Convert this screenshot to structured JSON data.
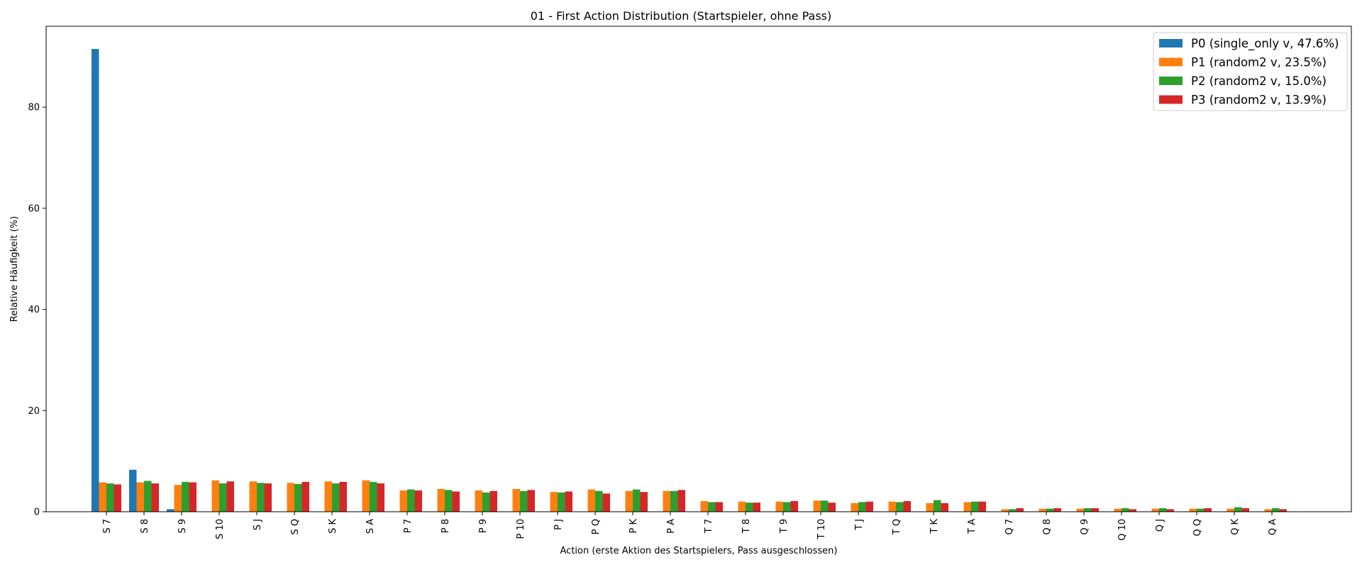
{
  "chart_data": {
    "type": "bar",
    "title": "01 - First Action Distribution (Startspieler, ohne Pass)",
    "xlabel": "Action (erste Aktion des Startspielers, Pass ausgeschlossen)",
    "ylabel": "Relative Häufigkeit (%)",
    "ylim": [
      0,
      96
    ],
    "yticks": [
      0,
      20,
      40,
      60,
      80
    ],
    "grid": false,
    "legend_position": "top-right",
    "categories": [
      "S 7",
      "S 8",
      "S 9",
      "S 10",
      "S J",
      "S Q",
      "S K",
      "S A",
      "P 7",
      "P 8",
      "P 9",
      "P 10",
      "P J",
      "P Q",
      "P K",
      "P A",
      "T 7",
      "T 8",
      "T 9",
      "T 10",
      "T J",
      "T Q",
      "T K",
      "T A",
      "Q 7",
      "Q 8",
      "Q 9",
      "Q 10",
      "Q J",
      "Q Q",
      "Q K",
      "Q A"
    ],
    "series": [
      {
        "name": "P0 (single_only v, 47.6%)",
        "color": "#1f77b4",
        "values": [
          91.5,
          8.3,
          0.5,
          0,
          0,
          0,
          0,
          0,
          0,
          0,
          0,
          0,
          0,
          0,
          0,
          0,
          0,
          0,
          0,
          0,
          0,
          0,
          0,
          0,
          0,
          0,
          0,
          0,
          0,
          0,
          0,
          0
        ]
      },
      {
        "name": "P1 (random2 v, 23.5%)",
        "color": "#ff7f0e",
        "values": [
          5.8,
          5.8,
          5.3,
          6.2,
          6.0,
          5.7,
          6.0,
          6.2,
          4.2,
          4.5,
          4.2,
          4.5,
          3.9,
          4.4,
          4.1,
          4.1,
          2.1,
          2.0,
          2.0,
          2.2,
          1.7,
          2.0,
          1.7,
          1.9,
          0.5,
          0.6,
          0.6,
          0.6,
          0.6,
          0.6,
          0.6,
          0.5
        ]
      },
      {
        "name": "P2 (random2 v, 15.0%)",
        "color": "#2ca02c",
        "values": [
          5.6,
          6.1,
          5.9,
          5.6,
          5.7,
          5.5,
          5.6,
          5.9,
          4.4,
          4.3,
          3.8,
          4.1,
          3.8,
          4.1,
          4.4,
          4.1,
          1.9,
          1.8,
          1.9,
          2.2,
          1.9,
          1.9,
          2.3,
          2.0,
          0.5,
          0.6,
          0.7,
          0.7,
          0.7,
          0.6,
          0.9,
          0.7
        ]
      },
      {
        "name": "P3 (random2 v, 13.9%)",
        "color": "#d62728",
        "values": [
          5.4,
          5.6,
          5.8,
          6.0,
          5.6,
          5.9,
          5.9,
          5.6,
          4.2,
          4.0,
          4.1,
          4.3,
          4.0,
          3.6,
          3.9,
          4.3,
          1.9,
          1.8,
          2.1,
          1.8,
          2.0,
          2.1,
          1.7,
          2.0,
          0.7,
          0.7,
          0.7,
          0.5,
          0.5,
          0.7,
          0.7,
          0.5
        ]
      }
    ]
  }
}
